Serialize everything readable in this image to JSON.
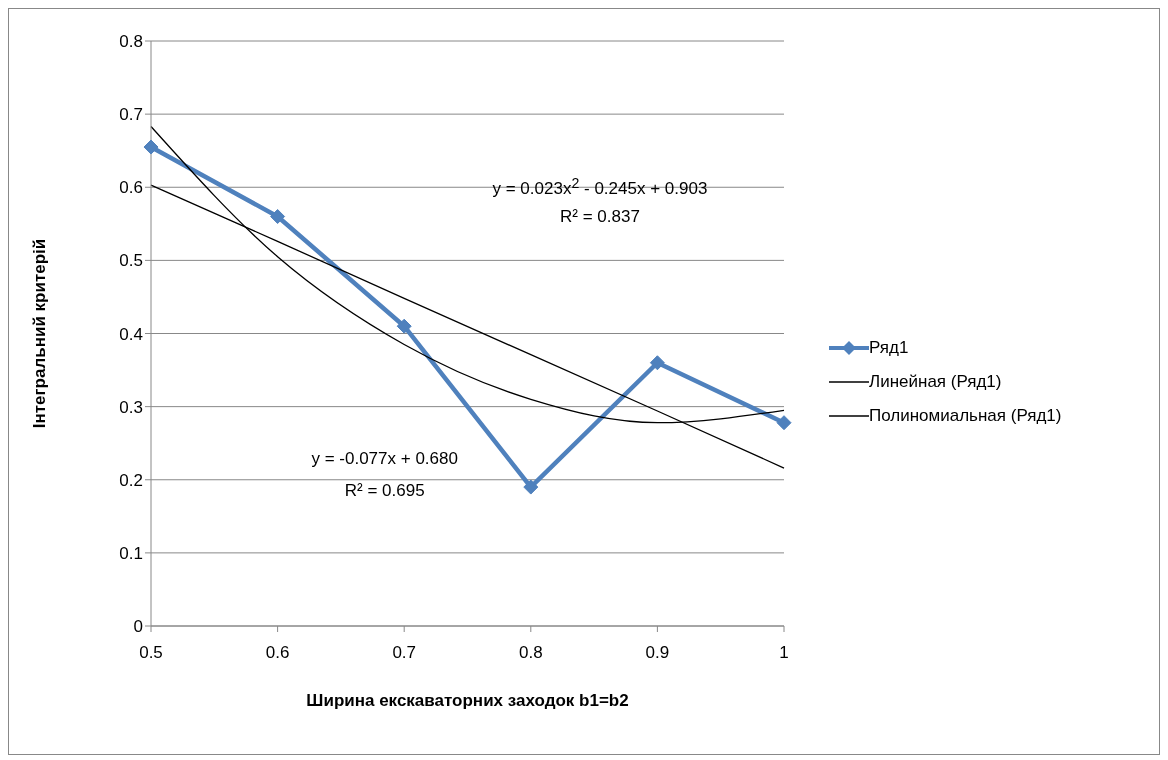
{
  "chart_data": {
    "type": "line",
    "xlabel": "Ширина екскаваторних заходок b1=b2",
    "ylabel": "Інтегральний критерій",
    "categories": [
      "0.5",
      "0.6",
      "0.7",
      "0.8",
      "0.9",
      "1"
    ],
    "series": [
      {
        "name": "Ряд1",
        "color": "#4f81bd",
        "marker": "diamond",
        "values": [
          0.655,
          0.56,
          0.41,
          0.19,
          0.36,
          0.278
        ]
      },
      {
        "name": "Линейная (Ряд1)",
        "color": "#000000",
        "marker": "none",
        "values": [
          0.603,
          0.526,
          0.448,
          0.371,
          0.294,
          0.216
        ]
      },
      {
        "name": "Полиномиальная (Ряд1)",
        "color": "#000000",
        "marker": "none",
        "values": [
          0.683,
          0.505,
          0.385,
          0.31,
          0.278,
          0.295
        ]
      }
    ],
    "ylim": [
      0,
      0.8
    ],
    "yticks": [
      0,
      0.1,
      0.2,
      0.3,
      0.4,
      0.5,
      0.6,
      0.7,
      0.8
    ],
    "grid": "y",
    "legend": "right",
    "annotations": [
      "y = 0.023x$^{2}$ - 0.245x + 0.903",
      "R² = 0.837",
      "y = -0.077x + 0.680",
      "R² = 0.695"
    ]
  }
}
